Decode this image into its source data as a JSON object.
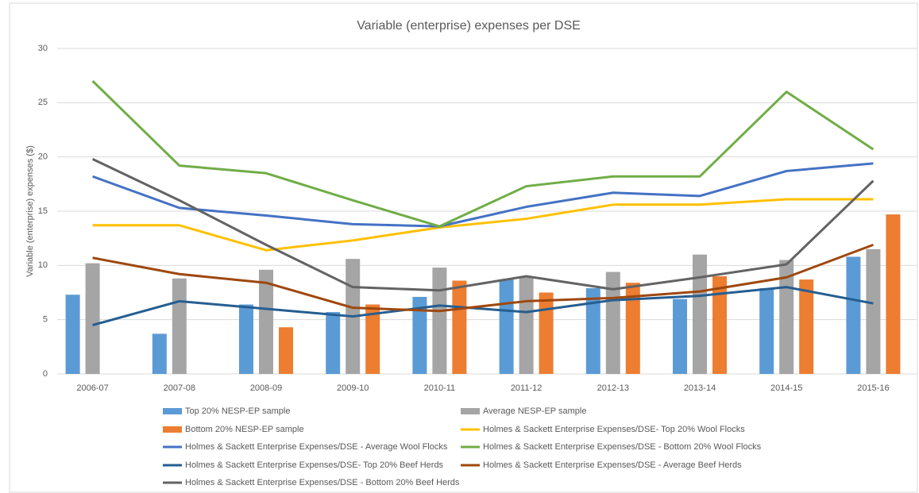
{
  "chart_data": {
    "type": "bar",
    "title": "Variable (enterprise) expenses per DSE",
    "y_label": "Variable (enterprise) expenses ($)",
    "categories": [
      "2006-07",
      "2007-08",
      "2008-09",
      "2009-10",
      "2010-11",
      "2011-12",
      "2012-13",
      "2013-14",
      "2014-15",
      "2015-16"
    ],
    "ylim": [
      0,
      30
    ],
    "yticks": [
      0,
      5,
      10,
      15,
      20,
      25,
      30
    ],
    "grid": true,
    "legend": "bottom",
    "series": [
      {
        "name": "Top 20% NESP-EP sample",
        "type": "bar",
        "color": "#5b9bd5",
        "values": [
          7.3,
          3.7,
          6.4,
          5.7,
          7.1,
          8.7,
          7.9,
          6.9,
          7.9,
          10.8
        ]
      },
      {
        "name": "Average NESP-EP sample",
        "type": "bar",
        "color": "#a5a5a5",
        "values": [
          10.2,
          8.8,
          9.6,
          10.6,
          9.8,
          8.9,
          9.4,
          11.0,
          10.5,
          11.5
        ]
      },
      {
        "name": "Bottom 20% NESP-EP sample",
        "type": "bar",
        "color": "#ed7d31",
        "values": [
          null,
          null,
          4.3,
          6.4,
          8.6,
          7.5,
          8.4,
          9.0,
          8.7,
          14.7
        ]
      },
      {
        "name": "Holmes & Sackett Enterprise Expenses/DSE- Top 20% Wool Flocks",
        "type": "line",
        "color": "#ffc000",
        "values": [
          13.7,
          13.7,
          11.4,
          12.3,
          13.5,
          14.3,
          15.6,
          15.6,
          16.1,
          16.1
        ]
      },
      {
        "name": "Holmes & Sackett Enterprise Expenses/DSE - Average Wool Flocks",
        "type": "line",
        "color": "#4472c4",
        "values": [
          18.2,
          15.3,
          14.6,
          13.8,
          13.6,
          15.4,
          16.7,
          16.4,
          18.7,
          19.4
        ]
      },
      {
        "name": "Holmes & Sackett Enterprise Expenses/DSE - Bottom 20% Wool Flocks",
        "type": "line",
        "color": "#70ad47",
        "values": [
          27.0,
          19.2,
          18.5,
          16.0,
          13.6,
          17.3,
          18.2,
          18.2,
          26.0,
          20.7
        ]
      },
      {
        "name": "Holmes & Sackett Enterprise Expenses/DSE- Top 20% Beef Herds",
        "type": "line",
        "color": "#255e91",
        "values": [
          4.5,
          6.7,
          6.0,
          5.3,
          6.3,
          5.7,
          6.8,
          7.2,
          8.0,
          6.5
        ]
      },
      {
        "name": "Holmes & Sackett Enterprise Expenses/DSE - Average Beef Herds",
        "type": "line",
        "color": "#9e480e",
        "values": [
          10.7,
          9.2,
          8.4,
          6.1,
          5.8,
          6.7,
          7.0,
          7.6,
          8.9,
          11.9
        ]
      },
      {
        "name": "Holmes & Sackett Enterprise Expenses/DSE - Bottom 20% Beef Herds",
        "type": "line",
        "color": "#636363",
        "values": [
          19.8,
          16.0,
          11.9,
          8.0,
          7.7,
          9.0,
          7.8,
          8.9,
          10.1,
          17.8
        ]
      }
    ]
  }
}
